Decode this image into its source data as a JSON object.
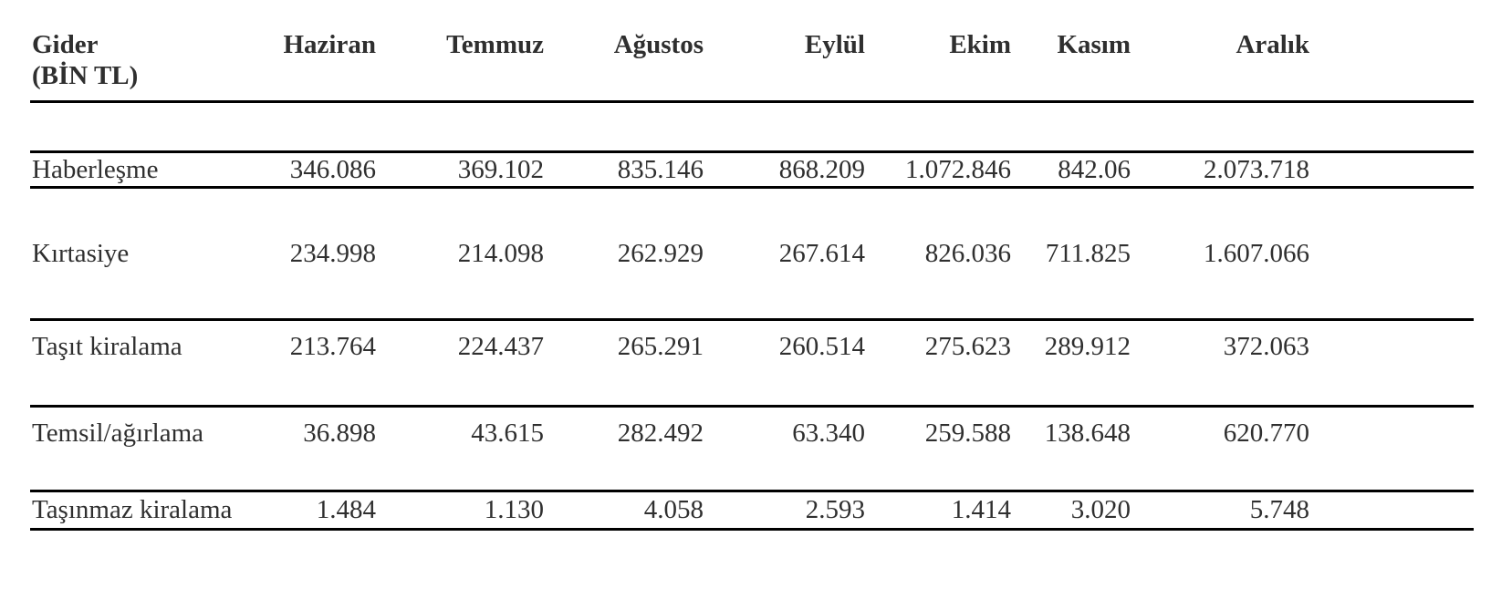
{
  "table": {
    "unit_note": "BİN TL",
    "header": {
      "title_line1": "Gider",
      "title_line2": "(BİN TL)",
      "months": [
        "Haziran",
        "Temmuz",
        "Ağustos",
        "Eylül",
        "Ekim",
        "Kasım",
        "Aralık"
      ]
    },
    "rows": [
      {
        "label": "Haberleşme",
        "values": [
          "346.086",
          "369.102",
          "835.146",
          "868.209",
          "1.072.846",
          "842.06",
          "2.073.718"
        ]
      },
      {
        "label": "Kırtasiye",
        "values": [
          "234.998",
          "214.098",
          "262.929",
          "267.614",
          "826.036",
          "711.825",
          "1.607.066"
        ]
      },
      {
        "label": "Taşıt kiralama",
        "values": [
          "213.764",
          "224.437",
          "265.291",
          "260.514",
          "275.623",
          "289.912",
          "372.063"
        ]
      },
      {
        "label": "Temsil/ağırlama",
        "values": [
          "36.898",
          "43.615",
          "282.492",
          "63.340",
          "259.588",
          "138.648",
          "620.770"
        ]
      },
      {
        "label": "Taşınmaz kiralama",
        "values": [
          "1.484",
          "1.130",
          "4.058",
          "2.593",
          "1.414",
          "3.020",
          "5.748"
        ]
      }
    ],
    "colors": {
      "text": "#2f2f2f",
      "rule": "#000000",
      "background": "#ffffff"
    }
  }
}
